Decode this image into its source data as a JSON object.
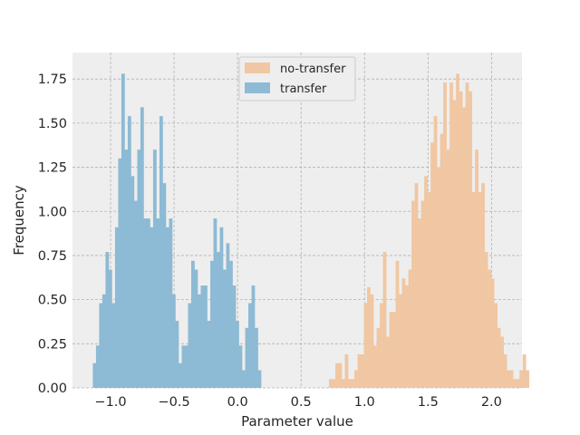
{
  "chart_data": {
    "type": "histogram",
    "title": "",
    "xlabel": "Parameter value",
    "ylabel": "Frequency",
    "xlim": [
      -1.3,
      2.24
    ],
    "ylim": [
      0,
      1.9
    ],
    "xticks": [
      -1.0,
      -0.5,
      0.0,
      0.5,
      1.0,
      1.5,
      2.0
    ],
    "xtick_labels": [
      "−1.0",
      "−0.5",
      "0.0",
      "0.5",
      "1.0",
      "1.5",
      "2.0"
    ],
    "yticks": [
      0,
      0.25,
      0.5,
      0.75,
      1.0,
      1.25,
      1.5,
      1.75
    ],
    "ytick_labels": [
      "0.00",
      "0.25",
      "0.50",
      "0.75",
      "1.00",
      "1.25",
      "1.50",
      "1.75"
    ],
    "grid": true,
    "legend_position": "top-center",
    "series": [
      {
        "name": "no-transfer",
        "color": "#f0c7a2",
        "bin_start": 0.72,
        "bin_width": 0.025,
        "values": [
          0.05,
          0.05,
          0.14,
          0.14,
          0.05,
          0.19,
          0.05,
          0.05,
          0.1,
          0.19,
          0.19,
          0.48,
          0.57,
          0.53,
          0.24,
          0.34,
          0.48,
          0.77,
          0.29,
          0.43,
          0.43,
          0.72,
          0.53,
          0.62,
          0.58,
          0.67,
          1.06,
          1.16,
          0.96,
          1.06,
          1.2,
          1.11,
          1.39,
          1.54,
          1.25,
          1.44,
          1.73,
          1.35,
          1.73,
          1.63,
          1.78,
          1.68,
          1.59,
          1.73,
          1.68,
          1.11,
          1.35,
          1.11,
          1.16,
          0.77,
          0.67,
          0.62,
          0.48,
          0.34,
          0.29,
          0.19,
          0.1,
          0.1,
          0.05,
          0.05,
          0.1,
          0.19,
          0.1
        ]
      },
      {
        "name": "transfer",
        "color": "#8dbad4",
        "bin_start": -1.14,
        "bin_width": 0.025,
        "values": [
          0.14,
          0.24,
          0.48,
          0.53,
          0.77,
          0.67,
          0.48,
          0.91,
          1.3,
          1.78,
          1.35,
          1.54,
          1.2,
          1.06,
          1.35,
          1.59,
          0.96,
          0.96,
          0.91,
          1.35,
          0.96,
          1.54,
          1.16,
          0.91,
          0.96,
          0.53,
          0.38,
          0.14,
          0.24,
          0.24,
          0.48,
          0.72,
          0.67,
          0.53,
          0.58,
          0.58,
          0.38,
          0.72,
          0.96,
          0.77,
          0.91,
          0.67,
          0.82,
          0.72,
          0.58,
          0.38,
          0.24,
          0.1,
          0.34,
          0.48,
          0.58,
          0.34,
          0.1
        ]
      }
    ]
  }
}
